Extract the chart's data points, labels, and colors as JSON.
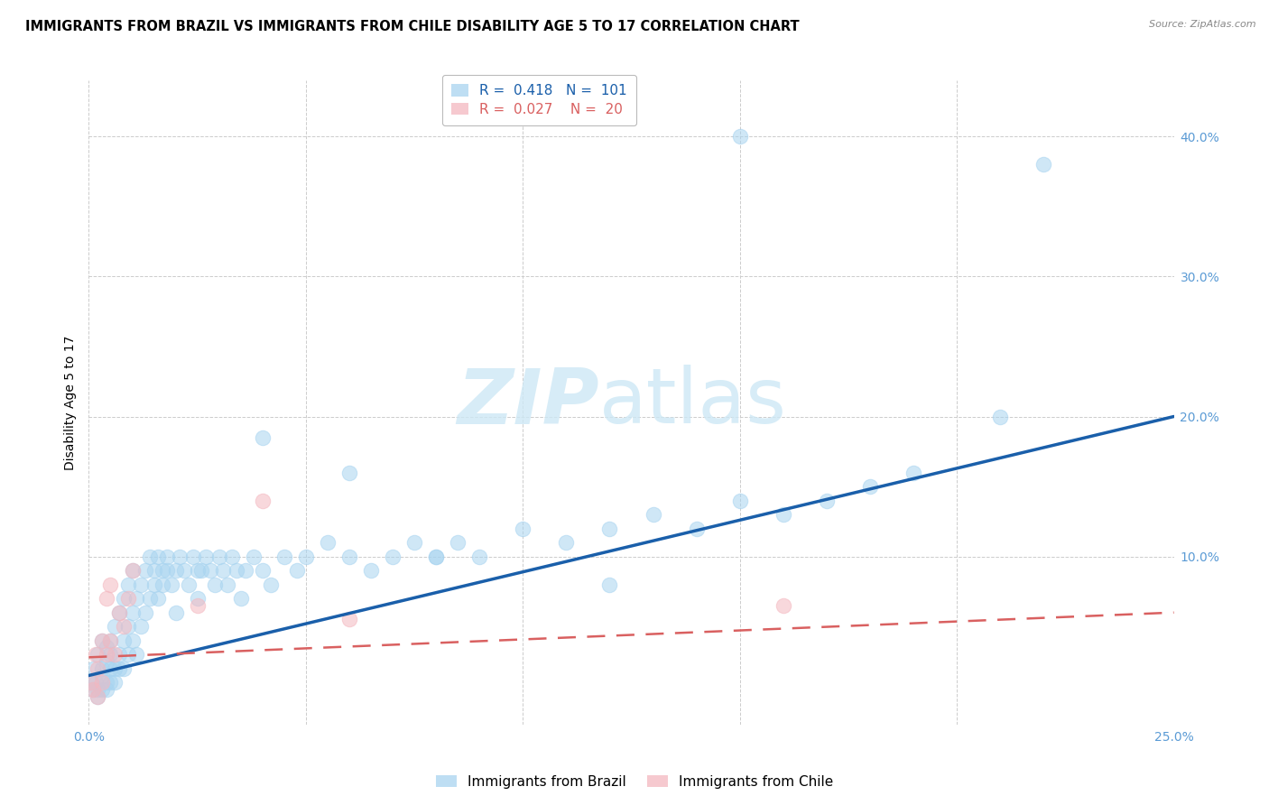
{
  "title": "IMMIGRANTS FROM BRAZIL VS IMMIGRANTS FROM CHILE DISABILITY AGE 5 TO 17 CORRELATION CHART",
  "source": "Source: ZipAtlas.com",
  "ylabel": "Disability Age 5 to 17",
  "xlim": [
    0.0,
    0.25
  ],
  "ylim": [
    -0.02,
    0.44
  ],
  "xtick_vals": [
    0.0,
    0.25
  ],
  "xtick_labels": [
    "0.0%",
    "25.0%"
  ],
  "ytick_vals": [
    0.1,
    0.2,
    0.3,
    0.4
  ],
  "ytick_labels": [
    "10.0%",
    "20.0%",
    "30.0%",
    "40.0%"
  ],
  "grid_yticks": [
    0.1,
    0.2,
    0.3,
    0.4
  ],
  "grid_xticks": [
    0.0,
    0.05,
    0.1,
    0.15,
    0.2,
    0.25
  ],
  "brazil_color": "#a8d4f0",
  "chile_color": "#f4b8c0",
  "brazil_line_color": "#1a5faa",
  "chile_line_color": "#d96060",
  "brazil_r": "0.418",
  "brazil_n": "101",
  "chile_r": "0.027",
  "chile_n": "20",
  "brazil_x": [
    0.0005,
    0.001,
    0.001,
    0.0015,
    0.002,
    0.002,
    0.002,
    0.003,
    0.003,
    0.003,
    0.003,
    0.004,
    0.004,
    0.004,
    0.004,
    0.005,
    0.005,
    0.005,
    0.005,
    0.006,
    0.006,
    0.006,
    0.007,
    0.007,
    0.007,
    0.008,
    0.008,
    0.008,
    0.009,
    0.009,
    0.009,
    0.01,
    0.01,
    0.01,
    0.011,
    0.011,
    0.012,
    0.012,
    0.013,
    0.013,
    0.014,
    0.014,
    0.015,
    0.015,
    0.016,
    0.016,
    0.017,
    0.017,
    0.018,
    0.018,
    0.019,
    0.02,
    0.02,
    0.021,
    0.022,
    0.023,
    0.024,
    0.025,
    0.025,
    0.026,
    0.027,
    0.028,
    0.029,
    0.03,
    0.031,
    0.032,
    0.033,
    0.034,
    0.035,
    0.036,
    0.038,
    0.04,
    0.042,
    0.045,
    0.048,
    0.05,
    0.055,
    0.06,
    0.065,
    0.07,
    0.075,
    0.08,
    0.085,
    0.09,
    0.1,
    0.11,
    0.12,
    0.13,
    0.14,
    0.15,
    0.16,
    0.17,
    0.18,
    0.19,
    0.04,
    0.06,
    0.08,
    0.12,
    0.21,
    0.22,
    0.15
  ],
  "brazil_y": [
    0.01,
    0.005,
    0.02,
    0.01,
    0.005,
    0.03,
    0.0,
    0.015,
    0.02,
    0.005,
    0.04,
    0.01,
    0.025,
    0.035,
    0.005,
    0.02,
    0.03,
    0.01,
    0.04,
    0.02,
    0.05,
    0.01,
    0.03,
    0.06,
    0.02,
    0.04,
    0.07,
    0.02,
    0.05,
    0.08,
    0.03,
    0.06,
    0.09,
    0.04,
    0.07,
    0.03,
    0.08,
    0.05,
    0.09,
    0.06,
    0.1,
    0.07,
    0.09,
    0.08,
    0.1,
    0.07,
    0.09,
    0.08,
    0.09,
    0.1,
    0.08,
    0.09,
    0.06,
    0.1,
    0.09,
    0.08,
    0.1,
    0.09,
    0.07,
    0.09,
    0.1,
    0.09,
    0.08,
    0.1,
    0.09,
    0.08,
    0.1,
    0.09,
    0.07,
    0.09,
    0.1,
    0.09,
    0.08,
    0.1,
    0.09,
    0.1,
    0.11,
    0.1,
    0.09,
    0.1,
    0.11,
    0.1,
    0.11,
    0.1,
    0.12,
    0.11,
    0.12,
    0.13,
    0.12,
    0.14,
    0.13,
    0.14,
    0.15,
    0.16,
    0.185,
    0.16,
    0.1,
    0.08,
    0.2,
    0.38,
    0.4
  ],
  "chile_x": [
    0.0005,
    0.001,
    0.0015,
    0.002,
    0.002,
    0.003,
    0.003,
    0.004,
    0.004,
    0.005,
    0.005,
    0.006,
    0.007,
    0.008,
    0.009,
    0.01,
    0.025,
    0.04,
    0.06,
    0.16
  ],
  "chile_y": [
    0.01,
    0.005,
    0.03,
    0.02,
    0.0,
    0.04,
    0.01,
    0.03,
    0.07,
    0.04,
    0.08,
    0.03,
    0.06,
    0.05,
    0.07,
    0.09,
    0.065,
    0.14,
    0.055,
    0.065
  ],
  "brazil_trend_x": [
    0.0,
    0.25
  ],
  "brazil_trend_y": [
    0.015,
    0.2
  ],
  "chile_trend_x": [
    0.0,
    0.25
  ],
  "chile_trend_y": [
    0.028,
    0.06
  ],
  "bg_color": "#ffffff",
  "grid_color": "#cccccc",
  "tick_color": "#5b9bd5",
  "title_size": 10.5,
  "source_size": 8,
  "label_size": 10,
  "tick_size": 10,
  "legend_size": 11
}
